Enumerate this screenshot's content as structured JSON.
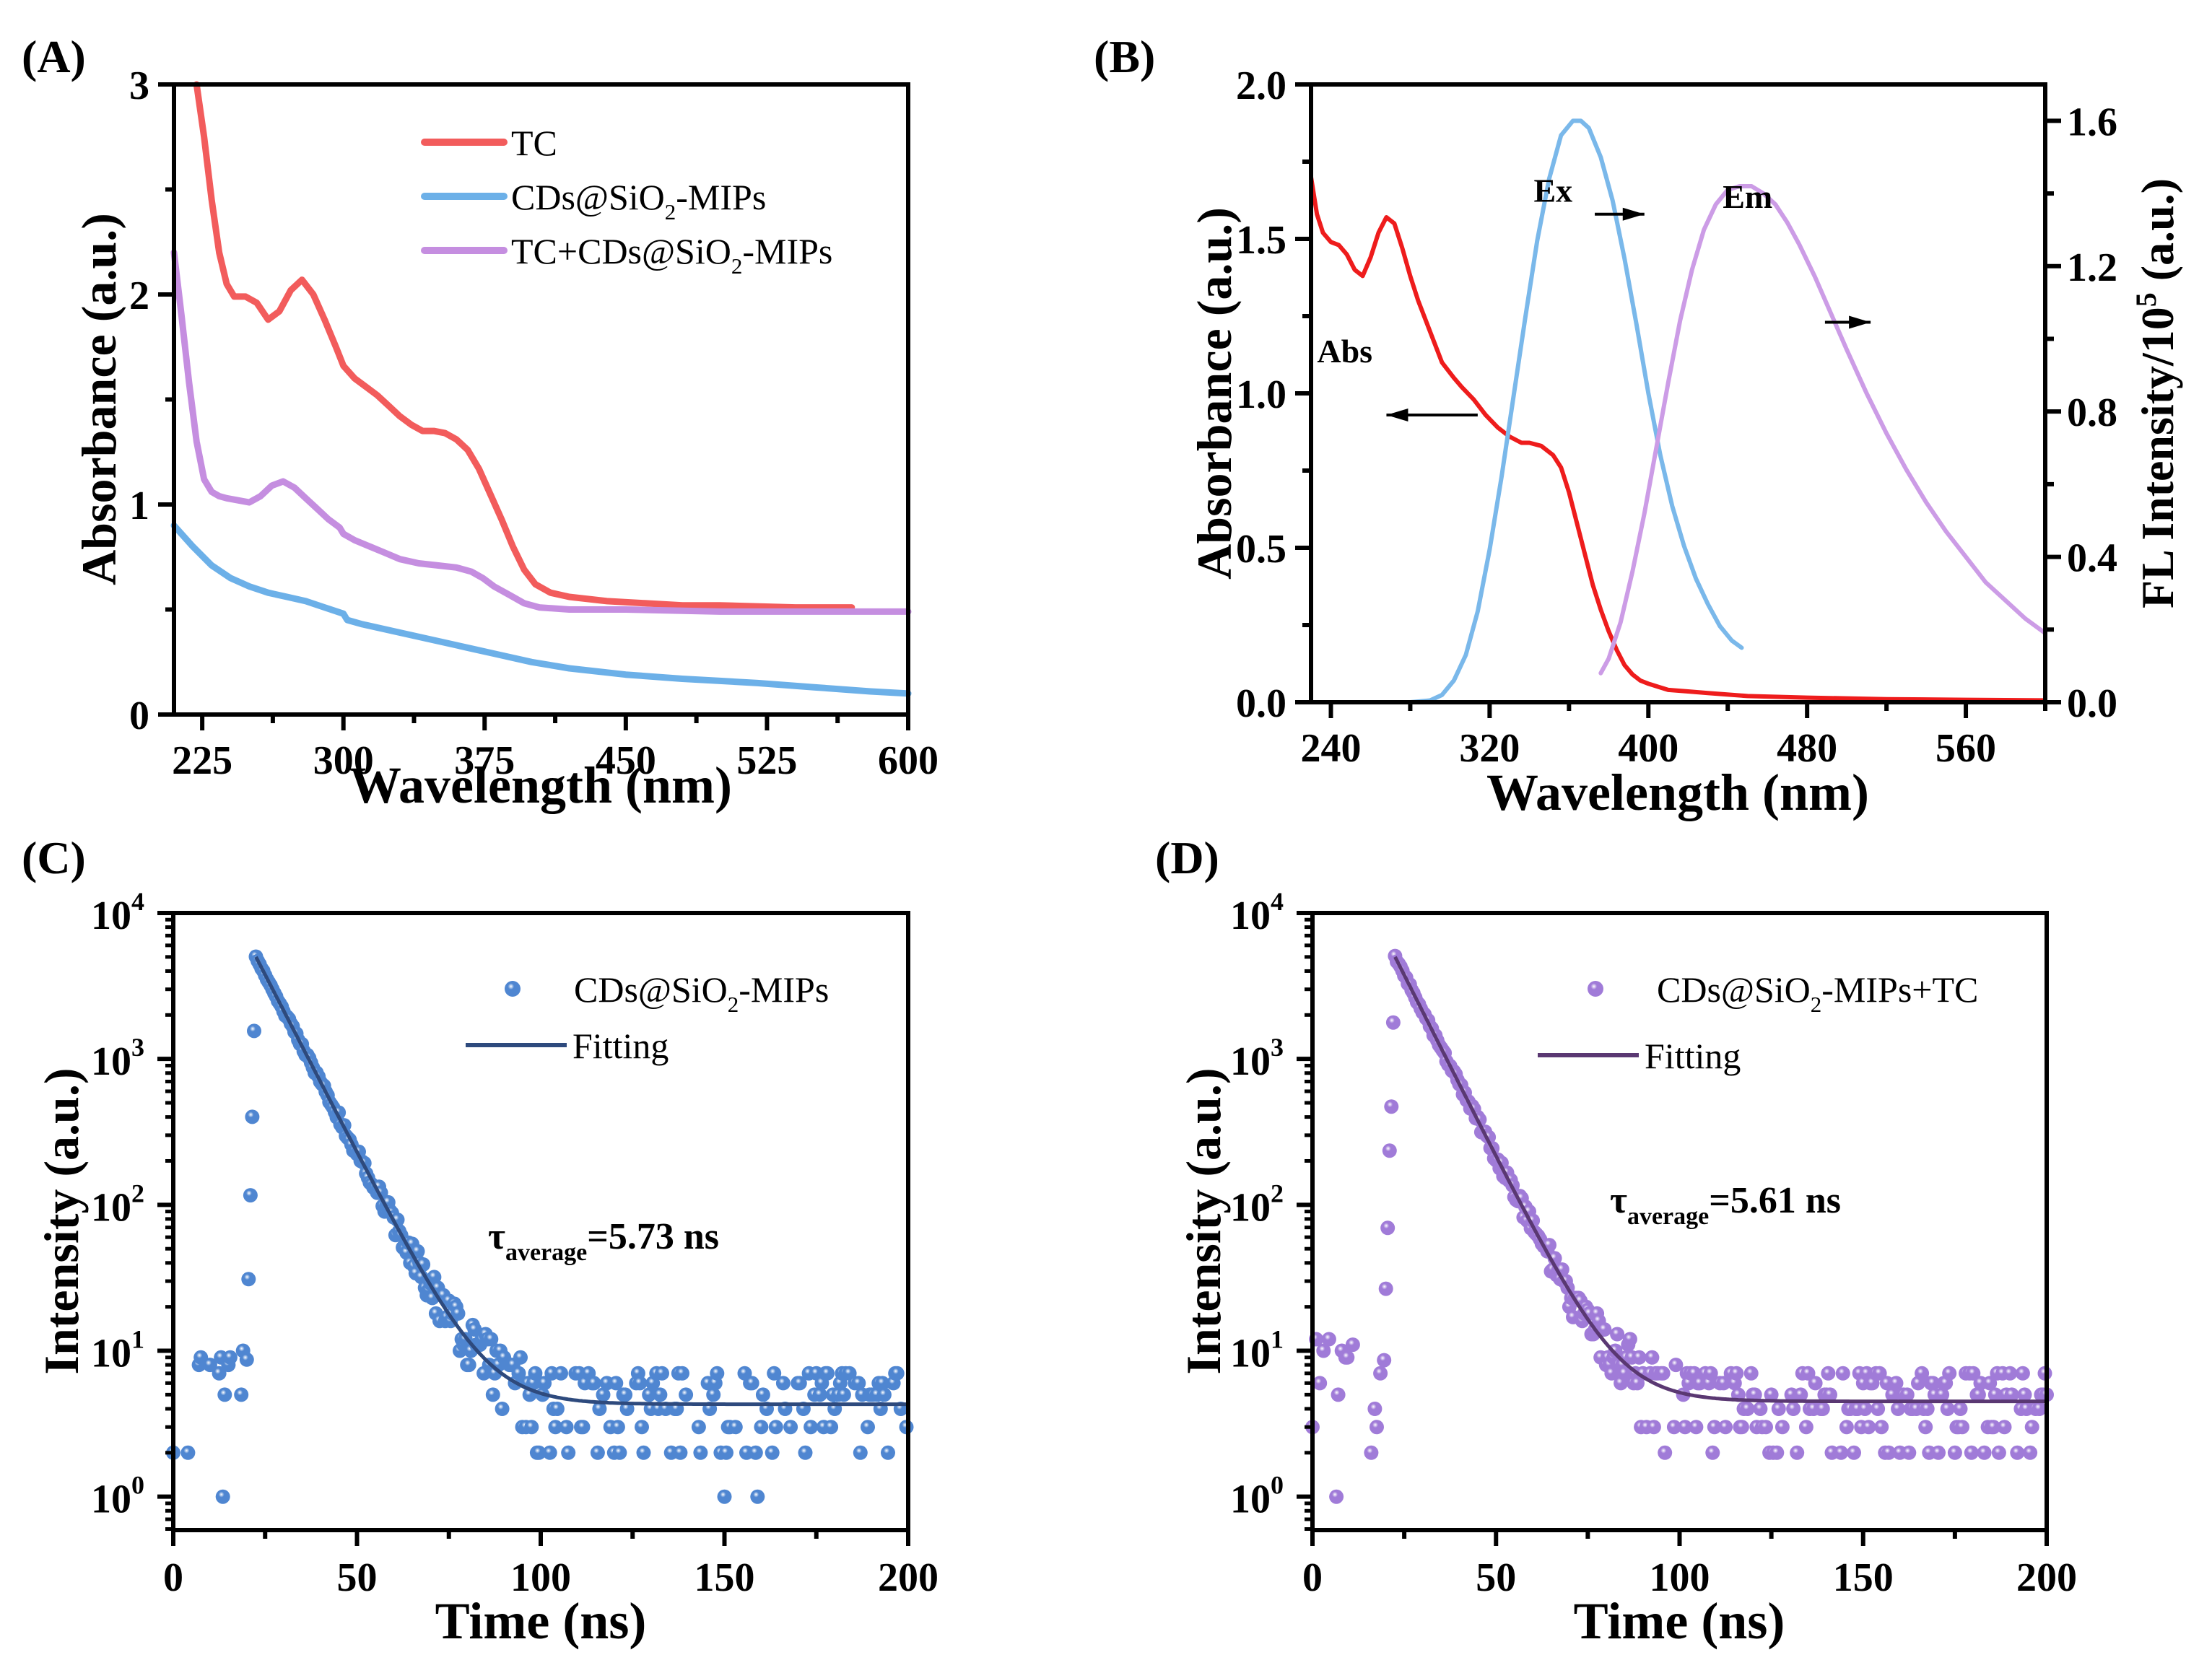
{
  "figure": {
    "panels": [
      "A",
      "B",
      "C",
      "D"
    ]
  },
  "chart_data": [
    {
      "panel_label": "(A)",
      "type": "line",
      "title": "",
      "xlabel": "Wavelength (nm)",
      "ylabel": "Absorbance (a.u.)",
      "xlim": [
        210,
        600
      ],
      "ylim": [
        0,
        3
      ],
      "xticks": [
        225,
        300,
        375,
        450,
        525,
        600
      ],
      "xtick_labels": [
        "225",
        "300",
        "375",
        "450",
        "525",
        "600"
      ],
      "yticks": [
        0,
        1,
        2,
        3
      ],
      "ytick_labels": [
        "0",
        "1",
        "2",
        "3"
      ],
      "grid": false,
      "legend_position": "top-right",
      "series": [
        {
          "name": "TC",
          "legend_label": "TC",
          "color": "#f25c5c",
          "x": [
            222,
            226,
            230,
            234,
            238,
            242,
            248,
            254,
            260,
            266,
            272,
            278,
            284,
            290,
            296,
            300,
            306,
            312,
            318,
            324,
            330,
            336,
            342,
            348,
            354,
            360,
            366,
            372,
            378,
            384,
            390,
            396,
            402,
            410,
            420,
            440,
            460,
            480,
            500,
            540,
            570
          ],
          "y": [
            3.0,
            2.75,
            2.45,
            2.2,
            2.05,
            1.99,
            1.99,
            1.96,
            1.88,
            1.92,
            2.02,
            2.07,
            2.0,
            1.88,
            1.75,
            1.66,
            1.6,
            1.56,
            1.52,
            1.47,
            1.42,
            1.38,
            1.35,
            1.35,
            1.34,
            1.31,
            1.26,
            1.17,
            1.05,
            0.93,
            0.8,
            0.69,
            0.62,
            0.58,
            0.56,
            0.54,
            0.53,
            0.52,
            0.52,
            0.51,
            0.51
          ]
        },
        {
          "name": "CDs@SiO2-MIPs",
          "legend_label": "CDs@SiO",
          "legend_sub": "2",
          "legend_suffix": "-MIPs",
          "color": "#6cb0e8",
          "x": [
            210,
            220,
            230,
            240,
            250,
            260,
            270,
            280,
            290,
            300,
            302,
            310,
            330,
            350,
            370,
            380,
            400,
            420,
            450,
            480,
            500,
            520,
            550,
            580,
            600
          ],
          "y": [
            0.9,
            0.8,
            0.71,
            0.65,
            0.61,
            0.58,
            0.56,
            0.54,
            0.51,
            0.48,
            0.45,
            0.43,
            0.39,
            0.35,
            0.31,
            0.29,
            0.25,
            0.22,
            0.19,
            0.17,
            0.16,
            0.15,
            0.13,
            0.11,
            0.1
          ]
        },
        {
          "name": "TC+CDs@SiO2-MIPs",
          "legend_label": "TC+CDs@SiO",
          "legend_sub": "2",
          "legend_suffix": "-MIPs",
          "color": "#c58ee0",
          "x": [
            210,
            214,
            218,
            222,
            226,
            230,
            234,
            238,
            244,
            250,
            256,
            262,
            268,
            274,
            280,
            286,
            292,
            298,
            300,
            306,
            314,
            322,
            330,
            340,
            350,
            360,
            368,
            374,
            380,
            388,
            396,
            404,
            420,
            450,
            500,
            550,
            600
          ],
          "y": [
            2.2,
            1.9,
            1.58,
            1.3,
            1.12,
            1.06,
            1.04,
            1.03,
            1.02,
            1.01,
            1.04,
            1.09,
            1.11,
            1.08,
            1.03,
            0.98,
            0.93,
            0.89,
            0.86,
            0.83,
            0.8,
            0.77,
            0.74,
            0.72,
            0.71,
            0.7,
            0.68,
            0.65,
            0.61,
            0.57,
            0.53,
            0.51,
            0.5,
            0.5,
            0.49,
            0.49,
            0.49
          ]
        }
      ]
    },
    {
      "panel_label": "(B)",
      "type": "line",
      "title": "",
      "xlabel": "Wavelength (nm)",
      "ylabel": "Absorbance (a.u.)",
      "ylabel_right": "FL Intensity/10",
      "ylabel_right_sup": "5",
      "ylabel_right_suffix": " (a.u.)",
      "xlim": [
        230,
        600
      ],
      "ylim": [
        0,
        2.0
      ],
      "ylim_right": [
        0,
        1.7
      ],
      "xticks": [
        240,
        320,
        400,
        480,
        560
      ],
      "xtick_labels": [
        "240",
        "320",
        "400",
        "480",
        "560"
      ],
      "yticks": [
        0,
        0.5,
        1.0,
        1.5,
        2.0
      ],
      "ytick_labels": [
        "0.0",
        "0.5",
        "1.0",
        "1.5",
        "2.0"
      ],
      "yticks_right": [
        0,
        0.4,
        0.8,
        1.2,
        1.6
      ],
      "ytick_labels_right": [
        "0.0",
        "0.4",
        "0.8",
        "1.2",
        "1.6"
      ],
      "grid": false,
      "annotations": [
        {
          "text": "Ex",
          "x": 352,
          "y": 1.62
        },
        {
          "text": "Em",
          "x": 450,
          "y": 1.6
        },
        {
          "text": "Abs",
          "x": 247,
          "y": 1.1
        },
        {
          "arrow": "right",
          "x0": 373,
          "x1": 398,
          "y": 1.58
        },
        {
          "arrow": "right",
          "x0": 489,
          "x1": 512,
          "y": 1.23
        },
        {
          "arrow": "left",
          "x0": 314,
          "x1": 268,
          "y": 0.93
        }
      ],
      "series": [
        {
          "name": "Abs",
          "axis": "left",
          "color": "#ee1c1c",
          "x": [
            230,
            233,
            236,
            240,
            244,
            248,
            252,
            256,
            260,
            264,
            268,
            272,
            276,
            280,
            284,
            290,
            296,
            302,
            306,
            312,
            318,
            324,
            330,
            336,
            340,
            346,
            352,
            356,
            360,
            364,
            368,
            372,
            376,
            380,
            384,
            388,
            392,
            396,
            400,
            405,
            410,
            420,
            430,
            450,
            480,
            520,
            560,
            600
          ],
          "y": [
            1.7,
            1.58,
            1.52,
            1.49,
            1.48,
            1.45,
            1.4,
            1.38,
            1.44,
            1.52,
            1.57,
            1.55,
            1.47,
            1.38,
            1.3,
            1.2,
            1.1,
            1.05,
            1.02,
            0.98,
            0.93,
            0.89,
            0.86,
            0.84,
            0.84,
            0.83,
            0.8,
            0.76,
            0.68,
            0.58,
            0.48,
            0.38,
            0.3,
            0.23,
            0.17,
            0.12,
            0.09,
            0.07,
            0.06,
            0.05,
            0.04,
            0.035,
            0.03,
            0.02,
            0.015,
            0.01,
            0.008,
            0.006
          ]
        },
        {
          "name": "Ex",
          "axis": "right",
          "color": "#7ab8ea",
          "x": [
            280,
            290,
            296,
            302,
            308,
            314,
            320,
            326,
            332,
            338,
            344,
            350,
            356,
            362,
            366,
            370,
            376,
            382,
            388,
            394,
            400,
            406,
            412,
            418,
            424,
            430,
            436,
            442,
            447
          ],
          "y": [
            0.0,
            0.005,
            0.02,
            0.06,
            0.13,
            0.25,
            0.42,
            0.62,
            0.84,
            1.06,
            1.27,
            1.44,
            1.56,
            1.6,
            1.6,
            1.58,
            1.5,
            1.38,
            1.22,
            1.04,
            0.85,
            0.68,
            0.54,
            0.43,
            0.34,
            0.27,
            0.21,
            0.17,
            0.15
          ]
        },
        {
          "name": "Em",
          "axis": "right",
          "color": "#cc9ce6",
          "x": [
            376,
            380,
            386,
            392,
            398,
            404,
            410,
            416,
            422,
            428,
            434,
            440,
            446,
            452,
            458,
            464,
            470,
            476,
            484,
            492,
            500,
            510,
            520,
            530,
            540,
            550,
            560,
            570,
            580,
            590,
            600
          ],
          "y": [
            0.08,
            0.12,
            0.22,
            0.36,
            0.52,
            0.7,
            0.88,
            1.05,
            1.19,
            1.3,
            1.37,
            1.41,
            1.42,
            1.42,
            1.4,
            1.37,
            1.32,
            1.26,
            1.17,
            1.07,
            0.97,
            0.85,
            0.74,
            0.64,
            0.55,
            0.47,
            0.4,
            0.33,
            0.28,
            0.23,
            0.19
          ]
        }
      ]
    },
    {
      "panel_label": "(C)",
      "type": "scatter",
      "title": "",
      "xlabel": "Time (ns)",
      "ylabel": "Intensity (a.u.)",
      "xlim": [
        0,
        200
      ],
      "ylim": [
        0.59,
        10000
      ],
      "yscale": "log",
      "xticks": [
        0,
        50,
        100,
        150,
        200
      ],
      "xtick_labels": [
        "0",
        "50",
        "100",
        "150",
        "200"
      ],
      "yticks": [
        1,
        10,
        100,
        1000,
        10000
      ],
      "ytick_exponents": [
        "0",
        "1",
        "2",
        "3",
        "4"
      ],
      "grid": false,
      "legend_position": "top-right",
      "annotation": {
        "tau": "τ",
        "sub": "average",
        "value": "=5.73 ns"
      },
      "decay": {
        "t0": 22.5,
        "peak": 5000,
        "tau": 5.73,
        "background": 4.3,
        "rise_start": 20.0
      },
      "series": [
        {
          "name": "CDs@SiO2-MIPs",
          "legend_label": "CDs@SiO",
          "legend_sub": "2",
          "legend_suffix": "-MIPs",
          "kind": "scatter",
          "color": "#4f86d1"
        },
        {
          "name": "Fitting",
          "legend_label": "Fitting",
          "kind": "line",
          "color": "#2e4a7d"
        }
      ]
    },
    {
      "panel_label": "(D)",
      "type": "scatter",
      "title": "",
      "xlabel": "Time (ns)",
      "ylabel": "Intensity (a.u.)",
      "xlim": [
        0,
        200
      ],
      "ylim": [
        0.59,
        10000
      ],
      "yscale": "log",
      "xticks": [
        0,
        50,
        100,
        150,
        200
      ],
      "xtick_labels": [
        "0",
        "50",
        "100",
        "150",
        "200"
      ],
      "yticks": [
        1,
        10,
        100,
        1000,
        10000
      ],
      "ytick_exponents": [
        "0",
        "1",
        "2",
        "3",
        "4"
      ],
      "grid": false,
      "legend_position": "top-right",
      "annotation": {
        "tau": "τ",
        "sub": "average",
        "value": "=5.61 ns"
      },
      "decay": {
        "t0": 22.5,
        "peak": 5000,
        "tau": 5.61,
        "background": 4.5,
        "rise_start": 19.5
      },
      "series": [
        {
          "name": "CDs@SiO2-MIPs+TC",
          "legend_label": "CDs@SiO",
          "legend_sub": "2",
          "legend_suffix": "-MIPs+TC",
          "kind": "scatter",
          "color": "#a07bd8"
        },
        {
          "name": "Fitting",
          "legend_label": "Fitting",
          "kind": "line",
          "color": "#5a3872"
        }
      ]
    }
  ]
}
